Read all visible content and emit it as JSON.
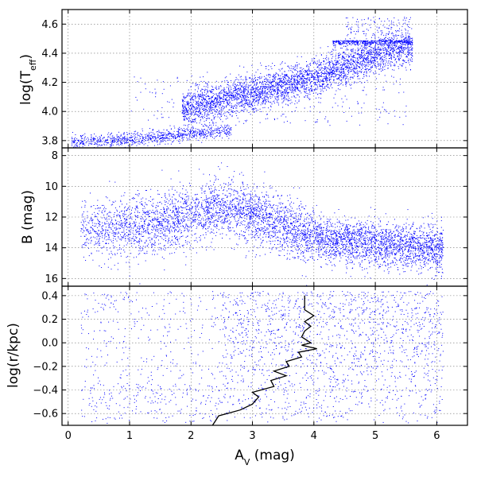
{
  "chart_data": [
    {
      "type": "scatter",
      "panel": "top",
      "ylabel": "log(T_eff)",
      "xlim": [
        -0.1,
        6.5
      ],
      "ylim": [
        3.75,
        4.7
      ],
      "yticks": [
        "3.8",
        "4.0",
        "4.2",
        "4.4",
        "4.6"
      ],
      "ytick_values": [
        3.8,
        4.0,
        4.2,
        4.4,
        4.6
      ],
      "grid": true,
      "point_color": "#0000ff",
      "series": [
        {
          "values_description": "hot-star sequence",
          "points": [
            [
              1.9,
              4.02
            ],
            [
              2.1,
              4.05
            ],
            [
              2.3,
              4.06
            ],
            [
              2.5,
              4.08
            ],
            [
              2.7,
              4.1
            ],
            [
              2.9,
              4.12
            ],
            [
              3.1,
              4.14
            ],
            [
              3.3,
              4.16
            ],
            [
              3.5,
              4.18
            ],
            [
              3.7,
              4.2
            ],
            [
              3.9,
              4.22
            ],
            [
              4.1,
              4.25
            ],
            [
              4.3,
              4.28
            ],
            [
              4.5,
              4.31
            ],
            [
              4.7,
              4.34
            ],
            [
              4.9,
              4.37
            ],
            [
              5.1,
              4.4
            ],
            [
              5.3,
              4.43
            ],
            [
              5.5,
              4.45
            ]
          ]
        },
        {
          "values_description": "cool-star sequence",
          "points": [
            [
              0.1,
              3.79
            ],
            [
              0.4,
              3.8
            ],
            [
              0.7,
              3.8
            ],
            [
              1.0,
              3.81
            ],
            [
              1.3,
              3.82
            ],
            [
              1.6,
              3.83
            ],
            [
              1.9,
              3.85
            ],
            [
              2.2,
              3.86
            ],
            [
              2.5,
              3.87
            ]
          ]
        }
      ]
    },
    {
      "type": "scatter",
      "panel": "middle",
      "ylabel": "B (mag)",
      "xlim": [
        -0.1,
        6.5
      ],
      "ylim": [
        16.5,
        7.5
      ],
      "yticks": [
        "8",
        "10",
        "12",
        "14",
        "16"
      ],
      "ytick_values": [
        8,
        10,
        12,
        14,
        16
      ],
      "grid": true,
      "point_color": "#0000ff",
      "series": [
        {
          "values_description": "B magnitude vs extinction",
          "points": [
            [
              0.3,
              12.8
            ],
            [
              0.6,
              12.8
            ],
            [
              1.0,
              12.6
            ],
            [
              1.4,
              12.4
            ],
            [
              1.8,
              12.0
            ],
            [
              2.2,
              11.6
            ],
            [
              2.6,
              11.4
            ],
            [
              3.0,
              11.8
            ],
            [
              3.4,
              12.4
            ],
            [
              3.8,
              13.0
            ],
            [
              4.2,
              13.4
            ],
            [
              4.6,
              13.6
            ],
            [
              5.0,
              13.7
            ],
            [
              5.4,
              13.8
            ],
            [
              5.8,
              14.0
            ]
          ]
        }
      ]
    },
    {
      "type": "scatter",
      "panel": "bottom",
      "xlabel": "A_V (mag)",
      "ylabel": "log(r/kpc)",
      "xlim": [
        -0.1,
        6.5
      ],
      "ylim": [
        -0.7,
        0.48
      ],
      "xticks": [
        "0",
        "1",
        "2",
        "3",
        "4",
        "5",
        "6"
      ],
      "xtick_values": [
        0,
        1,
        2,
        3,
        4,
        5,
        6
      ],
      "yticks": [
        "−0.6",
        "−0.4",
        "−0.2",
        "0.0",
        "0.2",
        "0.4"
      ],
      "ytick_values": [
        -0.6,
        -0.4,
        -0.2,
        0.0,
        0.2,
        0.4
      ],
      "grid": true,
      "point_color": "#0000ff",
      "line_color": "#000000",
      "series": [
        {
          "values_description": "median trend line",
          "points": [
            [
              2.35,
              -0.7
            ],
            [
              2.4,
              -0.66
            ],
            [
              2.45,
              -0.62
            ],
            [
              2.8,
              -0.57
            ],
            [
              3.0,
              -0.52
            ],
            [
              3.1,
              -0.46
            ],
            [
              3.0,
              -0.42
            ],
            [
              3.35,
              -0.37
            ],
            [
              3.3,
              -0.32
            ],
            [
              3.55,
              -0.28
            ],
            [
              3.35,
              -0.24
            ],
            [
              3.6,
              -0.2
            ],
            [
              3.55,
              -0.16
            ],
            [
              3.8,
              -0.12
            ],
            [
              3.75,
              -0.08
            ],
            [
              4.05,
              -0.05
            ],
            [
              3.8,
              -0.02
            ],
            [
              3.95,
              0.0
            ],
            [
              3.8,
              0.05
            ],
            [
              3.85,
              0.1
            ],
            [
              3.95,
              0.14
            ],
            [
              3.85,
              0.18
            ],
            [
              4.0,
              0.23
            ],
            [
              3.85,
              0.28
            ],
            [
              3.85,
              0.34
            ],
            [
              3.85,
              0.4
            ]
          ]
        }
      ]
    }
  ]
}
